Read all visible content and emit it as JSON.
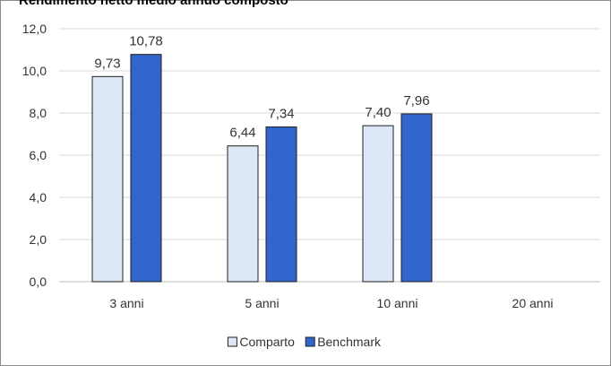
{
  "chart_data": {
    "type": "bar",
    "title": "Rendimento netto medio annuo composto",
    "categories": [
      "3 anni",
      "5 anni",
      "10 anni",
      "20 anni"
    ],
    "series": [
      {
        "name": "Comparto",
        "values": [
          9.73,
          6.44,
          7.4,
          null
        ],
        "labels": [
          "9,73",
          "6,44",
          "7,40",
          ""
        ],
        "color": "#dde8f6",
        "stroke": "#1f1f1f"
      },
      {
        "name": "Benchmark",
        "values": [
          10.78,
          7.34,
          7.96,
          null
        ],
        "labels": [
          "10,78",
          "7,34",
          "7,96",
          ""
        ],
        "color": "#3366cc",
        "stroke": "#1f1f1f"
      }
    ],
    "yticks": [
      "0,0",
      "2,0",
      "4,0",
      "6,0",
      "8,0",
      "10,0",
      "12,0"
    ],
    "ylim": [
      0,
      12
    ],
    "grid": true,
    "legend": "bottom-center"
  }
}
